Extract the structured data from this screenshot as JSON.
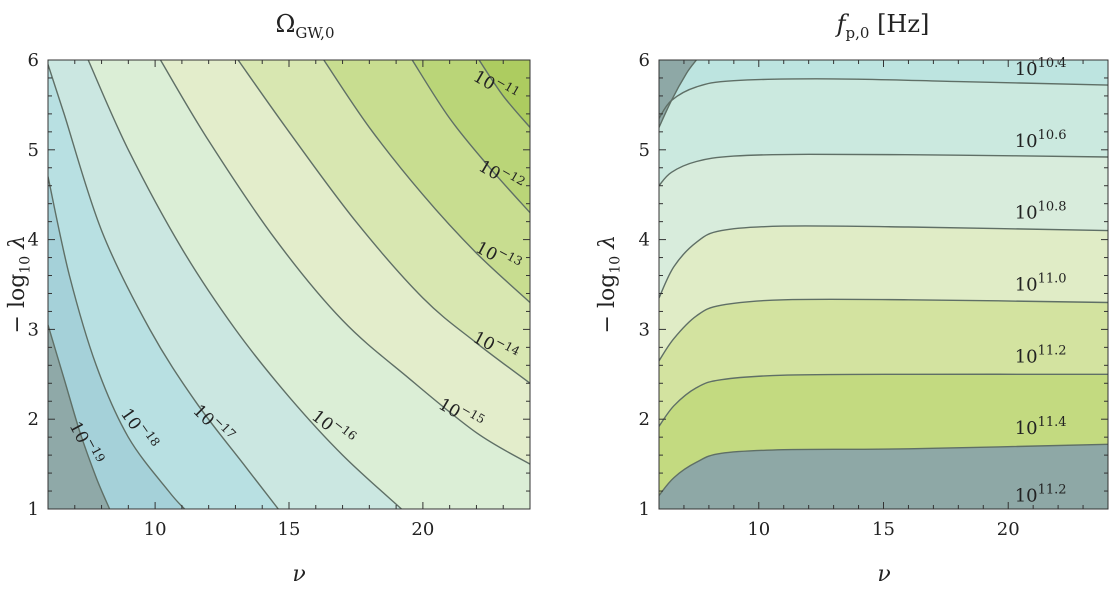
{
  "chart_data": [
    {
      "type": "contour",
      "title_main": "Ω",
      "title_sub": "GW,0",
      "xlabel": "ν",
      "ylabel_main": "− log",
      "ylabel_sub": "10",
      "ylabel_tail": " λ",
      "xlim": [
        6,
        24
      ],
      "ylim": [
        1,
        6
      ],
      "xticks": [
        10,
        15,
        20
      ],
      "yticks": [
        1,
        2,
        3,
        4,
        5,
        6
      ],
      "levels": [
        "10−19",
        "10−18",
        "10−17",
        "10−16",
        "10−15",
        "10−14",
        "10−13",
        "10−12",
        "10−11"
      ],
      "contours": [
        {
          "level": "10−19",
          "points": [
            [
              6.0,
              3.05
            ],
            [
              6.6,
              2.45
            ],
            [
              7.2,
              1.85
            ],
            [
              7.8,
              1.35
            ],
            [
              8.3,
              1.0
            ]
          ]
        },
        {
          "level": "10−18",
          "points": [
            [
              6.0,
              4.7
            ],
            [
              6.8,
              3.6
            ],
            [
              7.8,
              2.6
            ],
            [
              9.0,
              1.8
            ],
            [
              10.5,
              1.2
            ],
            [
              11.1,
              1.0
            ]
          ]
        },
        {
          "level": "10−17",
          "points": [
            [
              6.0,
              5.95
            ],
            [
              6.6,
              5.4
            ],
            [
              8.0,
              4.1
            ],
            [
              9.8,
              3.0
            ],
            [
              11.5,
              2.2
            ],
            [
              13.3,
              1.5
            ],
            [
              14.6,
              1.0
            ]
          ]
        },
        {
          "level": "10−16",
          "points": [
            [
              7.5,
              6.0
            ],
            [
              9.0,
              5.0
            ],
            [
              11.0,
              3.9
            ],
            [
              13.0,
              3.0
            ],
            [
              15.0,
              2.25
            ],
            [
              17.0,
              1.6
            ],
            [
              19.2,
              1.0
            ]
          ]
        },
        {
          "level": "10−15",
          "points": [
            [
              10.2,
              6.0
            ],
            [
              12.0,
              5.1
            ],
            [
              14.5,
              4.0
            ],
            [
              17.0,
              3.1
            ],
            [
              19.5,
              2.45
            ],
            [
              22.0,
              1.85
            ],
            [
              24.0,
              1.5
            ]
          ]
        },
        {
          "level": "10−14",
          "points": [
            [
              13.1,
              6.0
            ],
            [
              15.0,
              5.2
            ],
            [
              17.5,
              4.2
            ],
            [
              20.0,
              3.35
            ],
            [
              22.0,
              2.85
            ],
            [
              24.0,
              2.4
            ]
          ]
        },
        {
          "level": "10−13",
          "points": [
            [
              16.3,
              6.0
            ],
            [
              18.0,
              5.25
            ],
            [
              20.0,
              4.5
            ],
            [
              22.0,
              3.85
            ],
            [
              24.0,
              3.3
            ]
          ]
        },
        {
          "level": "10−12",
          "points": [
            [
              19.6,
              6.0
            ],
            [
              21.0,
              5.35
            ],
            [
              22.5,
              4.8
            ],
            [
              24.0,
              4.3
            ]
          ]
        },
        {
          "level": "10−11",
          "points": [
            [
              22.1,
              6.0
            ],
            [
              23.0,
              5.6
            ],
            [
              24.0,
              5.25
            ]
          ]
        }
      ],
      "labels": [
        {
          "text": "10−19",
          "x": 7.2,
          "y": 1.7,
          "angle": 62
        },
        {
          "text": "10−18",
          "x": 9.2,
          "y": 1.85,
          "angle": 55
        },
        {
          "text": "10−17",
          "x": 12.0,
          "y": 1.9,
          "angle": 45
        },
        {
          "text": "10−16",
          "x": 16.5,
          "y": 1.85,
          "angle": 38
        },
        {
          "text": "10−15",
          "x": 21.3,
          "y": 2.0,
          "angle": 30
        },
        {
          "text": "10−14",
          "x": 22.6,
          "y": 2.75,
          "angle": 28
        },
        {
          "text": "10−13",
          "x": 22.7,
          "y": 3.75,
          "angle": 28
        },
        {
          "text": "10−12",
          "x": 22.8,
          "y": 4.65,
          "angle": 30
        },
        {
          "text": "10−11",
          "x": 22.6,
          "y": 5.65,
          "angle": 30
        }
      ],
      "colors": [
        "#8fa9a8",
        "#a5d1d9",
        "#b8e0e2",
        "#cbe7e1",
        "#dbeed6",
        "#e3edcb",
        "#d8e7b1",
        "#c8dd90",
        "#bad578",
        "#adcc60"
      ]
    },
    {
      "type": "contour",
      "title_main": "f",
      "title_sub": "p,0",
      "title_unit": " [Hz]",
      "xlabel": "ν",
      "ylabel_main": "− log",
      "ylabel_sub": "10",
      "ylabel_tail": " λ",
      "xlim": [
        6,
        24
      ],
      "ylim": [
        1,
        6
      ],
      "xticks": [
        10,
        15,
        20
      ],
      "yticks": [
        1,
        2,
        3,
        4,
        5,
        6
      ],
      "levels": [
        "1011.4",
        "1011.2",
        "1011.0",
        "1010.8",
        "1010.6",
        "1010.4"
      ],
      "contours": [
        {
          "level": "1011.4",
          "points": [
            [
              6.0,
              1.15
            ],
            [
              6.6,
              1.35
            ],
            [
              7.5,
              1.52
            ],
            [
              8.5,
              1.62
            ],
            [
              11.0,
              1.66
            ],
            [
              16.0,
              1.67
            ],
            [
              24.0,
              1.72
            ]
          ]
        },
        {
          "level": "1011.2",
          "points": [
            [
              6.0,
              1.92
            ],
            [
              6.6,
              2.15
            ],
            [
              7.5,
              2.35
            ],
            [
              8.5,
              2.44
            ],
            [
              11.0,
              2.49
            ],
            [
              16.0,
              2.5
            ],
            [
              24.0,
              2.5
            ]
          ]
        },
        {
          "level": "1011.0",
          "points": [
            [
              6.0,
              2.65
            ],
            [
              6.6,
              2.9
            ],
            [
              7.5,
              3.15
            ],
            [
              8.5,
              3.27
            ],
            [
              11.0,
              3.33
            ],
            [
              16.0,
              3.33
            ],
            [
              24.0,
              3.3
            ]
          ]
        },
        {
          "level": "1010.8",
          "points": [
            [
              6.0,
              3.35
            ],
            [
              6.6,
              3.7
            ],
            [
              7.5,
              3.97
            ],
            [
              8.5,
              4.1
            ],
            [
              11.0,
              4.15
            ],
            [
              16.0,
              4.14
            ],
            [
              24.0,
              4.1
            ]
          ]
        },
        {
          "level": "1010.6",
          "points": [
            [
              6.0,
              4.6
            ],
            [
              6.5,
              4.75
            ],
            [
              7.5,
              4.87
            ],
            [
              9.0,
              4.93
            ],
            [
              12.0,
              4.95
            ],
            [
              18.0,
              4.94
            ],
            [
              24.0,
              4.92
            ]
          ]
        },
        {
          "level": "1010.4",
          "points": [
            [
              6.0,
              5.35
            ],
            [
              6.5,
              5.55
            ],
            [
              7.5,
              5.7
            ],
            [
              9.0,
              5.77
            ],
            [
              13.0,
              5.79
            ],
            [
              18.0,
              5.76
            ],
            [
              24.0,
              5.72
            ]
          ]
        },
        {
          "level": "edge",
          "points": [
            [
              6.0,
              5.25
            ],
            [
              6.5,
              5.55
            ],
            [
              7.1,
              5.85
            ],
            [
              7.5,
              6.0
            ]
          ]
        }
      ],
      "labels": [
        {
          "text_base": "10",
          "text_exp": "10.4",
          "x": 21.3,
          "y": 5.9
        },
        {
          "text_base": "10",
          "text_exp": "10.6",
          "x": 21.3,
          "y": 5.1
        },
        {
          "text_base": "10",
          "text_exp": "10.8",
          "x": 21.3,
          "y": 4.3
        },
        {
          "text_base": "10",
          "text_exp": "11.0",
          "x": 21.3,
          "y": 3.5
        },
        {
          "text_base": "10",
          "text_exp": "11.2",
          "x": 21.3,
          "y": 2.7
        },
        {
          "text_base": "10",
          "text_exp": "11.4",
          "x": 21.3,
          "y": 1.9
        },
        {
          "text_base": "10",
          "text_exp": "11.2",
          "x": 21.3,
          "y": 1.15
        }
      ],
      "colors": [
        "#add05a",
        "#c3da80",
        "#d3e3a0",
        "#e0ecc6",
        "#d8ecdc",
        "#cbe9df",
        "#bde4e0",
        "#8ea8a6"
      ]
    }
  ]
}
